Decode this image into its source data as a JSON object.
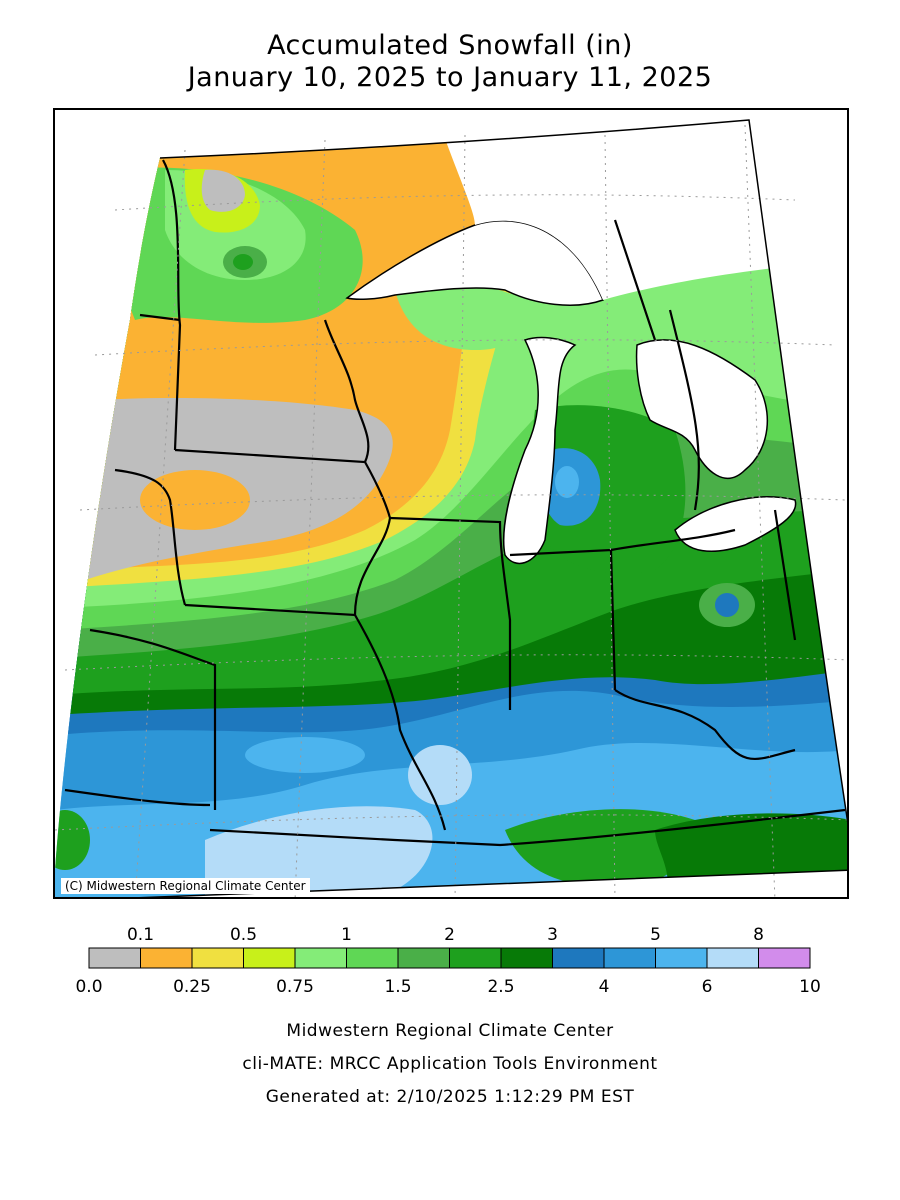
{
  "title": {
    "line1": "Accumulated Snowfall (in)",
    "line2": "January 10, 2025 to January 11, 2025"
  },
  "map": {
    "copyright": "(C) Midwestern Regional Climate Center",
    "land_color": "#ffffff",
    "state_line_color": "#000000"
  },
  "legend": {
    "upper_labels": [
      "0.1",
      "0.5",
      "1",
      "2",
      "3",
      "5",
      "8"
    ],
    "lower_labels": [
      "0.0",
      "0.25",
      "0.75",
      "1.5",
      "2.5",
      "4",
      "6",
      "10"
    ],
    "colors": [
      "#bebebe",
      "#fbb233",
      "#f0e040",
      "#c8f01a",
      "#84ec78",
      "#5fd755",
      "#4aaf48",
      "#1ea01e",
      "#077a07",
      "#1e78be",
      "#2d96d7",
      "#4cb4ee",
      "#b4dcf8",
      "#d28ceb"
    ]
  },
  "footer": {
    "line1": "Midwestern Regional Climate Center",
    "line2": "cli-MATE: MRCC Application Tools Environment",
    "line3": "Generated at: 2/10/2025 1:12:29 PM EST"
  }
}
